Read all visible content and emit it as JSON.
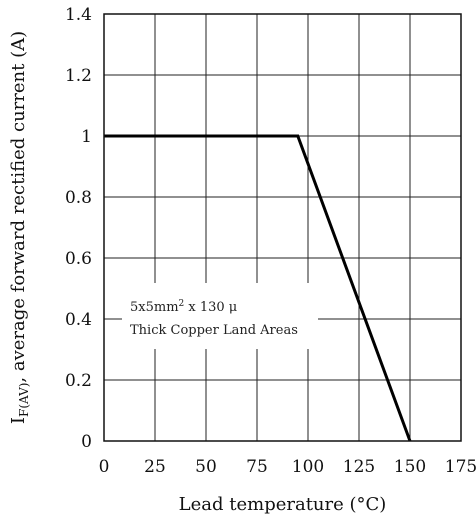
{
  "chart_data": {
    "type": "line",
    "xlabel": "Lead temperature (°C)",
    "ylabel_prefix": "I",
    "ylabel_subscript": "F(AV)",
    "ylabel_rest": ", average forward rectified current (A)",
    "xlim": [
      0,
      175
    ],
    "ylim": [
      0,
      1.4
    ],
    "x_ticks": [
      0,
      25,
      50,
      75,
      100,
      125,
      150,
      175
    ],
    "x_tick_labels": [
      "0",
      "25",
      "50",
      "75",
      "100",
      "125",
      "150",
      "175"
    ],
    "y_ticks": [
      0,
      0.2,
      0.4,
      0.6,
      0.8,
      1.0,
      1.2,
      1.4
    ],
    "y_tick_labels": [
      "0",
      "0.2",
      "0.4",
      "0.6",
      "0.8",
      "1",
      "1.2",
      "1.4"
    ],
    "grid": true,
    "series": [
      {
        "x": [
          0,
          95,
          150
        ],
        "y": [
          1.0,
          1.0,
          0
        ]
      }
    ],
    "annotation": {
      "line1_main": "5x5mm",
      "line1_sup": "2",
      "line1_rest": " x 130 μ",
      "line2": "Thick Copper Land Areas"
    }
  }
}
